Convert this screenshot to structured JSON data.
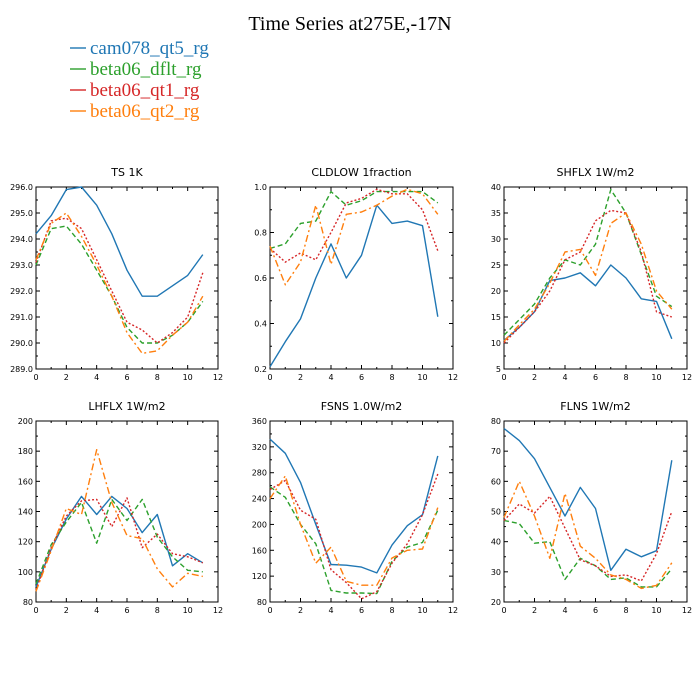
{
  "title": "Time Series at275E,-17N",
  "legend": [
    {
      "label": "cam078_qt5_rg",
      "color": "#2077b4",
      "dash": "solid"
    },
    {
      "label": "beta06_dflt_rg",
      "color": "#2ca02c",
      "dash": "dash"
    },
    {
      "label": "beta06_qt1_rg",
      "color": "#d62728",
      "dash": "dot"
    },
    {
      "label": "beta06_qt2_rg",
      "color": "#ff7f0e",
      "dash": "dashdot"
    }
  ],
  "chart_data": [
    {
      "type": "line",
      "title": "TS   1K",
      "x": [
        0,
        1,
        2,
        3,
        4,
        5,
        6,
        7,
        8,
        9,
        10,
        11
      ],
      "xlim": [
        0,
        12
      ],
      "xticks": [
        0,
        2,
        4,
        6,
        8,
        10,
        12
      ],
      "ylim": [
        289.0,
        296.0
      ],
      "yticks": [
        "289.0",
        "290.0",
        "291.0",
        "292.0",
        "293.0",
        "294.0",
        "295.0",
        "296.0"
      ],
      "yticks_values": [
        289,
        290,
        291,
        292,
        293,
        294,
        295,
        296
      ],
      "series": [
        {
          "name": "cam078_qt5_rg",
          "values": [
            294.2,
            294.9,
            295.9,
            296.0,
            295.3,
            294.2,
            292.8,
            291.8,
            291.8,
            292.2,
            292.6,
            293.4
          ]
        },
        {
          "name": "beta06_dflt_rg",
          "values": [
            293.0,
            294.4,
            294.5,
            293.8,
            292.8,
            291.8,
            290.6,
            290.0,
            290.0,
            290.3,
            290.8,
            291.6
          ]
        },
        {
          "name": "beta06_qt1_rg",
          "values": [
            293.1,
            294.7,
            294.8,
            294.4,
            293.2,
            292.0,
            290.8,
            290.5,
            290.0,
            290.4,
            291.0,
            292.7
          ]
        },
        {
          "name": "beta06_qt2_rg",
          "values": [
            293.2,
            294.6,
            295.0,
            294.1,
            293.0,
            291.8,
            290.4,
            289.6,
            289.7,
            290.3,
            290.8,
            291.8
          ]
        }
      ]
    },
    {
      "type": "line",
      "title": "CLDLOW   1fraction",
      "x": [
        0,
        1,
        2,
        3,
        4,
        5,
        6,
        7,
        8,
        9,
        10,
        11
      ],
      "xlim": [
        0,
        12
      ],
      "xticks": [
        0,
        2,
        4,
        6,
        8,
        10,
        12
      ],
      "ylim": [
        0.2,
        1.0
      ],
      "yticks": [
        "0.2",
        "0.4",
        "0.6",
        "0.8",
        "1.0"
      ],
      "yticks_values": [
        0.2,
        0.4,
        0.6,
        0.8,
        1.0
      ],
      "series": [
        {
          "name": "cam078_qt5_rg",
          "values": [
            0.21,
            0.32,
            0.42,
            0.6,
            0.75,
            0.6,
            0.7,
            0.92,
            0.84,
            0.85,
            0.83,
            0.43
          ]
        },
        {
          "name": "beta06_dflt_rg",
          "values": [
            0.73,
            0.75,
            0.84,
            0.85,
            0.98,
            0.92,
            0.94,
            0.98,
            0.98,
            0.98,
            0.98,
            0.93
          ]
        },
        {
          "name": "beta06_qt1_rg",
          "values": [
            0.73,
            0.67,
            0.71,
            0.68,
            0.8,
            0.93,
            0.95,
            0.99,
            0.97,
            0.97,
            0.9,
            0.72
          ]
        },
        {
          "name": "beta06_qt2_rg",
          "values": [
            0.74,
            0.57,
            0.67,
            0.92,
            0.66,
            0.88,
            0.89,
            0.92,
            0.96,
            0.99,
            0.97,
            0.88
          ]
        }
      ]
    },
    {
      "type": "line",
      "title": "SHFLX   1W/m2",
      "x": [
        0,
        1,
        2,
        3,
        4,
        5,
        6,
        7,
        8,
        9,
        10,
        11
      ],
      "xlim": [
        0,
        12
      ],
      "xticks": [
        0,
        2,
        4,
        6,
        8,
        10,
        12
      ],
      "ylim": [
        5,
        40
      ],
      "yticks": [
        "5",
        "10",
        "15",
        "20",
        "25",
        "30",
        "35",
        "40"
      ],
      "yticks_values": [
        5,
        10,
        15,
        20,
        25,
        30,
        35,
        40
      ],
      "series": [
        {
          "name": "cam078_qt5_rg",
          "values": [
            10.5,
            13.0,
            16.0,
            22.0,
            22.5,
            23.5,
            21.0,
            25.0,
            22.5,
            18.5,
            18.0,
            10.8
          ]
        },
        {
          "name": "beta06_dflt_rg",
          "values": [
            11.5,
            14.5,
            17.5,
            22.5,
            26.0,
            25.0,
            29.0,
            39.5,
            35.0,
            27.0,
            19.0,
            17.0
          ]
        },
        {
          "name": "beta06_qt1_rg",
          "values": [
            10.0,
            13.0,
            16.0,
            20.0,
            26.0,
            27.5,
            33.5,
            35.5,
            35.0,
            27.5,
            16.0,
            15.0
          ]
        },
        {
          "name": "beta06_qt2_rg",
          "values": [
            10.3,
            13.5,
            16.5,
            21.5,
            27.5,
            28.0,
            23.0,
            33.0,
            35.0,
            29.0,
            20.0,
            16.5
          ]
        }
      ]
    },
    {
      "type": "line",
      "title": "LHFLX   1W/m2",
      "x": [
        0,
        1,
        2,
        3,
        4,
        5,
        6,
        7,
        8,
        9,
        10,
        11
      ],
      "xlim": [
        0,
        12
      ],
      "xticks": [
        0,
        2,
        4,
        6,
        8,
        10,
        12
      ],
      "ylim": [
        80,
        200
      ],
      "yticks": [
        "80",
        "100",
        "120",
        "140",
        "160",
        "180",
        "200"
      ],
      "yticks_values": [
        80,
        100,
        120,
        140,
        160,
        180,
        200
      ],
      "series": [
        {
          "name": "cam078_qt5_rg",
          "values": [
            90,
            115,
            135,
            150,
            138,
            150,
            142,
            126,
            138,
            104,
            112,
            106
          ]
        },
        {
          "name": "beta06_dflt_rg",
          "values": [
            92,
            118,
            133,
            146,
            119,
            148,
            134,
            148,
            123,
            110,
            101,
            100
          ]
        },
        {
          "name": "beta06_qt1_rg",
          "values": [
            88,
            116,
            137,
            147,
            148,
            130,
            149,
            116,
            125,
            112,
            110,
            106
          ]
        },
        {
          "name": "beta06_qt2_rg",
          "values": [
            87,
            114,
            142,
            138,
            181,
            146,
            124,
            122,
            102,
            90,
            99,
            97
          ]
        }
      ]
    },
    {
      "type": "line",
      "title": "FSNS   1.0W/m2",
      "x": [
        0,
        1,
        2,
        3,
        4,
        5,
        6,
        7,
        8,
        9,
        10,
        11
      ],
      "xlim": [
        0,
        12
      ],
      "xticks": [
        0,
        2,
        4,
        6,
        8,
        10,
        12
      ],
      "ylim": [
        80,
        360
      ],
      "yticks": [
        "80",
        "120",
        "160",
        "200",
        "240",
        "280",
        "320",
        "360"
      ],
      "yticks_values": [
        80,
        120,
        160,
        200,
        240,
        280,
        320,
        360
      ],
      "series": [
        {
          "name": "cam078_qt5_rg",
          "values": [
            332,
            310,
            265,
            200,
            138,
            137,
            134,
            125,
            168,
            198,
            215,
            306
          ]
        },
        {
          "name": "beta06_dflt_rg",
          "values": [
            258,
            242,
            200,
            170,
            98,
            94,
            94,
            93,
            143,
            165,
            172,
            222
          ]
        },
        {
          "name": "beta06_qt1_rg",
          "values": [
            254,
            268,
            222,
            208,
            130,
            110,
            85,
            96,
            140,
            170,
            215,
            278
          ]
        },
        {
          "name": "beta06_qt2_rg",
          "values": [
            240,
            275,
            200,
            140,
            165,
            112,
            106,
            106,
            148,
            160,
            162,
            226
          ]
        }
      ]
    },
    {
      "type": "line",
      "title": "FLNS   1W/m2",
      "x": [
        0,
        1,
        2,
        3,
        4,
        5,
        6,
        7,
        8,
        9,
        10,
        11
      ],
      "xlim": [
        0,
        12
      ],
      "xticks": [
        0,
        2,
        4,
        6,
        8,
        10,
        12
      ],
      "ylim": [
        20,
        80
      ],
      "yticks": [
        "20",
        "30",
        "40",
        "50",
        "60",
        "70",
        "80"
      ],
      "yticks_values": [
        20,
        30,
        40,
        50,
        60,
        70,
        80
      ],
      "series": [
        {
          "name": "cam078_qt5_rg",
          "values": [
            77.5,
            73.5,
            67.5,
            58.0,
            48.5,
            58.0,
            51.0,
            30.5,
            37.5,
            35.0,
            37.0,
            67.0
          ]
        },
        {
          "name": "beta06_dflt_rg",
          "values": [
            47,
            46,
            39.5,
            40,
            27.5,
            34.5,
            32,
            27.5,
            28,
            25,
            25,
            31
          ]
        },
        {
          "name": "beta06_qt1_rg",
          "values": [
            47,
            52.5,
            49.5,
            55,
            44.5,
            34,
            32,
            28.5,
            29,
            27,
            36,
            50
          ]
        },
        {
          "name": "beta06_qt2_rg",
          "values": [
            48,
            60,
            48.5,
            34.5,
            56,
            38.5,
            34.5,
            29,
            27.5,
            24.5,
            25.5,
            33
          ]
        }
      ]
    }
  ]
}
